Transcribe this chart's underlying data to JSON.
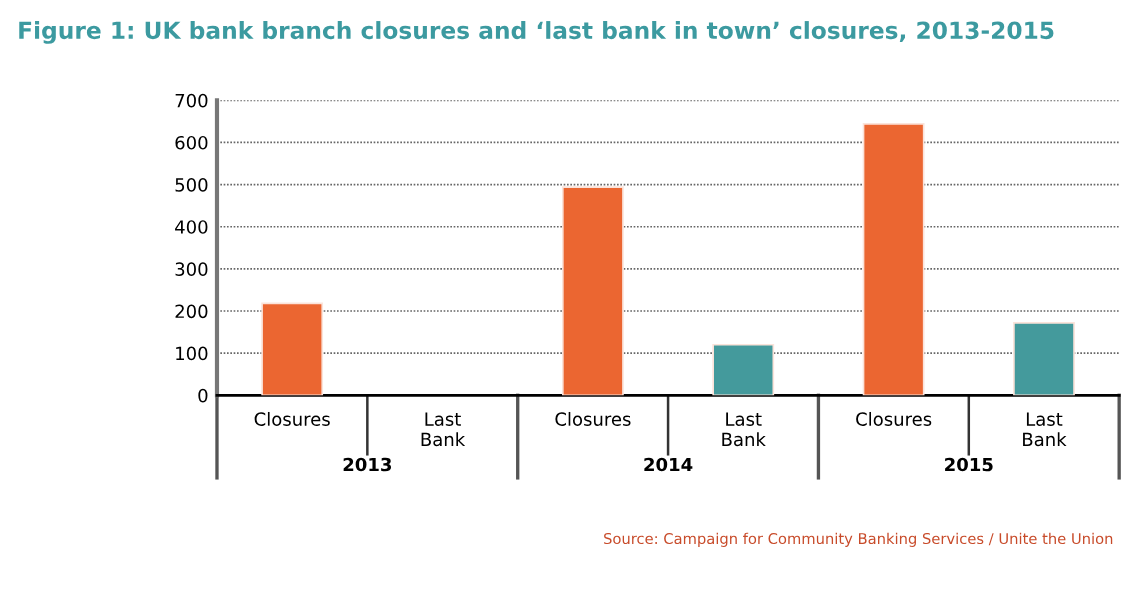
{
  "chart_data": {
    "type": "bar",
    "title": "Figure 1: UK bank branch closures and ‘last bank in town’ closures, 2013-2015",
    "categories": [
      "Closures",
      "Last\nBank",
      "Closures",
      "Last\nBank",
      "Closures",
      "Last\nBank"
    ],
    "values": [
      218,
      null,
      494,
      120,
      644,
      172
    ],
    "colors": [
      "#eb6631",
      "#449a9c",
      "#eb6631",
      "#449a9c",
      "#eb6631",
      "#449a9c"
    ],
    "ylim": [
      0,
      700
    ],
    "yticks": [
      0,
      100,
      200,
      300,
      400,
      500,
      600,
      700
    ],
    "grid": "y",
    "annotations": [
      "2013",
      "2014",
      "2015",
      "Source: Campaign for Community Banking Services / Unite the Union"
    ]
  }
}
